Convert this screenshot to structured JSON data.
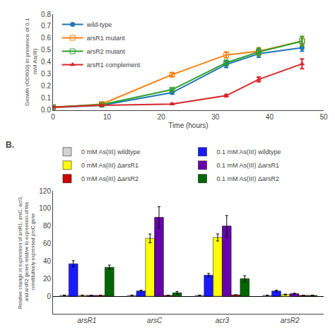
{
  "chart_data": [
    {
      "type": "line",
      "xlabel": "Time (hours)",
      "ylabel": "Growth (OD600) in presence of 0.1\n mM As(III)",
      "xlim": [
        0,
        50
      ],
      "xticks": [
        0,
        10,
        20,
        30,
        40,
        50
      ],
      "ylim": [
        0,
        0.8
      ],
      "yticks": [
        {
          "value": 0.0,
          "label": "0.0"
        },
        0.1,
        0.2,
        0.3,
        0.4,
        0.5,
        0.6,
        0.7,
        0.8
      ],
      "grid": false,
      "legend": "upper left",
      "x": [
        0,
        9,
        22,
        32,
        38,
        46
      ],
      "series": [
        {
          "name": "wild-type",
          "marker": "circle",
          "values": [
            0.02,
            0.04,
            0.145,
            0.38,
            0.47,
            0.52
          ],
          "errors": [
            0.005,
            0.005,
            0.01,
            0.025,
            0.03,
            0.03
          ]
        },
        {
          "name": "arsR1 mutant",
          "marker": "square-open",
          "values": [
            0.02,
            0.05,
            0.295,
            0.46,
            0.49,
            0.575
          ],
          "errors": [
            0.005,
            0.01,
            0.015,
            0.025,
            0.03,
            0.035
          ]
        },
        {
          "name": "arsR2 mutant",
          "marker": "square-open",
          "values": [
            0.025,
            0.045,
            0.17,
            0.395,
            0.485,
            0.575
          ],
          "errors": [
            0.005,
            0.005,
            0.01,
            0.02,
            0.03,
            0.04
          ]
        },
        {
          "name": "arsR1 complement",
          "marker": "triangle-up",
          "values": [
            0.025,
            0.04,
            0.05,
            0.12,
            0.255,
            0.385
          ],
          "errors": [
            0.005,
            0.005,
            0.005,
            0.01,
            0.02,
            0.04
          ]
        }
      ]
    },
    {
      "type": "bar",
      "ylabel": "Relative change in expression of arsR1, arsC, acr3,\n and arsR2 genes relative to expression of the\n constitutively expressed proC gene",
      "ylim": [
        -20,
        120
      ],
      "yticks": [
        0,
        20,
        40,
        60,
        80,
        100,
        120
      ],
      "grid": false,
      "legend": "top",
      "annotations": [
        "B."
      ],
      "categories": [
        "arsR1",
        "arsC",
        "acr3",
        "arsR2"
      ],
      "series": [
        {
          "name": "0 mM As(III) wildtype",
          "color": "#d3d3d3",
          "values": [
            1.0,
            1.0,
            1.0,
            1.0
          ],
          "errors": [
            0.3,
            0.3,
            0.3,
            0.3
          ]
        },
        {
          "name": "0.1 mM As(III) wildtype",
          "color": "#1a1aff",
          "values": [
            37.0,
            6.0,
            24.0,
            6.0
          ],
          "errors": [
            3.5,
            1.0,
            2.0,
            1.0
          ]
        },
        {
          "name": "0 mM As(III) ΔarsR1",
          "color": "#ffff00",
          "values": [
            1.0,
            66.0,
            67.0,
            2.0
          ],
          "errors": [
            0.3,
            5.0,
            4.0,
            0.5
          ]
        },
        {
          "name": "0.1 mM As(III) ΔarsR1",
          "color": "#6600aa",
          "values": [
            1.0,
            90.0,
            80.0,
            3.0
          ],
          "errors": [
            0.3,
            12.0,
            12.0,
            0.5
          ]
        },
        {
          "name": "0 mM As(III) ΔarsR2",
          "color": "#cc0000",
          "values": [
            1.0,
            1.0,
            1.5,
            1.0
          ],
          "errors": [
            0.3,
            0.3,
            0.3,
            0.3
          ]
        },
        {
          "name": "0.1 mM As(III) ΔarsR2",
          "color": "#006600",
          "values": [
            33.0,
            4.0,
            20.0,
            1.0
          ],
          "errors": [
            2.5,
            1.5,
            3.5,
            0.3
          ]
        }
      ]
    }
  ]
}
